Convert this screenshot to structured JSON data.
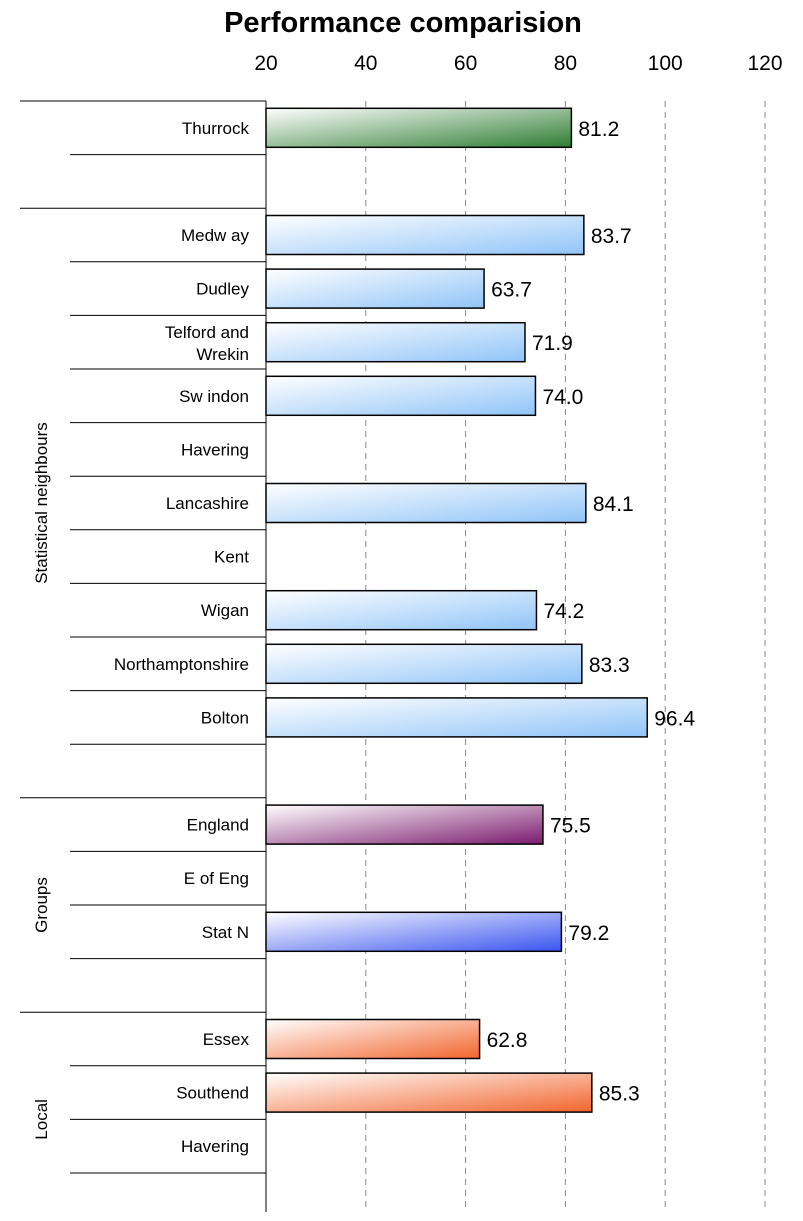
{
  "chart_data": {
    "type": "bar",
    "orientation": "horizontal",
    "title": "Performance comparision",
    "xlim": [
      20,
      120
    ],
    "xticks": [
      20,
      40,
      60,
      80,
      100,
      120
    ],
    "grid": true,
    "groups": [
      {
        "name": "",
        "color": "#2e7d32",
        "items": [
          {
            "label": "Thurrock",
            "value": 81.2,
            "value_label": "81.2"
          }
        ]
      },
      {
        "name": "Statistical neighbours",
        "color": "#90c4f8",
        "items": [
          {
            "label": "Medw ay",
            "value": 83.7,
            "value_label": "83.7"
          },
          {
            "label": "Dudley",
            "value": 63.7,
            "value_label": "63.7"
          },
          {
            "label": "Telford and Wrekin",
            "value": 71.9,
            "value_label": "71.9"
          },
          {
            "label": "Sw indon",
            "value": 74.0,
            "value_label": "74.0"
          },
          {
            "label": "Havering",
            "value": null,
            "value_label": ""
          },
          {
            "label": "Lancashire",
            "value": 84.1,
            "value_label": "84.1"
          },
          {
            "label": "Kent",
            "value": null,
            "value_label": ""
          },
          {
            "label": "Wigan",
            "value": 74.2,
            "value_label": "74.2"
          },
          {
            "label": "Northamptonshire",
            "value": 83.3,
            "value_label": "83.3"
          },
          {
            "label": "Bolton",
            "value": 96.4,
            "value_label": "96.4"
          }
        ]
      },
      {
        "name": "Groups",
        "color": "#7b1b6e",
        "items": [
          {
            "label": "England",
            "value": 75.5,
            "value_label": "75.5",
            "color": "#7b1b6e"
          },
          {
            "label": "E of Eng",
            "value": null,
            "value_label": ""
          },
          {
            "label": "Stat N",
            "value": 79.2,
            "value_label": "79.2",
            "color": "#3a54f0"
          }
        ]
      },
      {
        "name": "Local",
        "color": "#f2652d",
        "items": [
          {
            "label": "Essex",
            "value": 62.8,
            "value_label": "62.8"
          },
          {
            "label": "Southend",
            "value": 85.3,
            "value_label": "85.3"
          },
          {
            "label": "Havering",
            "value": null,
            "value_label": ""
          }
        ]
      }
    ]
  }
}
